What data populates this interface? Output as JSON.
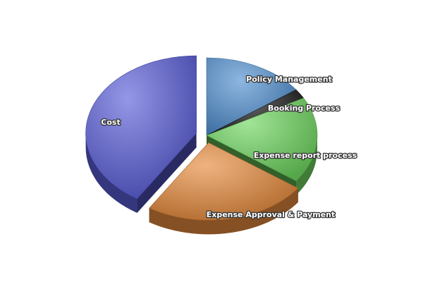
{
  "chart_data": {
    "type": "pie",
    "title": "",
    "three_d": true,
    "exploded": [
      "Cost",
      "Expense Approval & Payment"
    ],
    "categories": [
      "Policy Management",
      "Booking Process",
      "Expense report process",
      "Expense Approval & Payment",
      "Cost"
    ],
    "values": [
      15,
      2,
      18,
      24,
      41
    ],
    "series": [
      {
        "values": [
          15,
          2,
          18,
          24,
          41
        ],
        "colors": [
          "#4f8fd0",
          "#1c1c1c",
          "#6ed65f",
          "#e68a3c",
          "#5a5ed8"
        ]
      }
    ],
    "legend": "none",
    "start_angle": "12 o'clock, clockwise"
  }
}
